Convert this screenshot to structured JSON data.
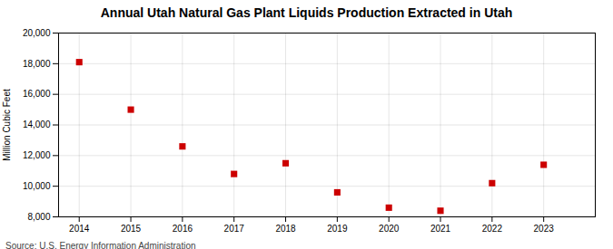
{
  "chart_data": {
    "type": "scatter",
    "title": "Annual Utah Natural Gas Plant Liquids Production Extracted in Utah",
    "ylabel": "Million Cubic Feet",
    "source": "Source: U.S. Energy Information Administration",
    "x": [
      2014,
      2015,
      2016,
      2017,
      2018,
      2019,
      2020,
      2021,
      2022,
      2023
    ],
    "values": [
      18100,
      15000,
      12600,
      10800,
      11500,
      9600,
      8600,
      8400,
      10200,
      11400
    ],
    "color": "#cc0000",
    "marker": "square",
    "xlim": [
      2013.6,
      2024.0
    ],
    "xticks": [
      2014,
      2015,
      2016,
      2017,
      2018,
      2019,
      2020,
      2021,
      2022,
      2023
    ],
    "ylim": [
      8000,
      20000
    ],
    "yticks": [
      {
        "value": 8000,
        "label": "8,000"
      },
      {
        "value": 10000,
        "label": "10,000"
      },
      {
        "value": 12000,
        "label": "12,000"
      },
      {
        "value": 14000,
        "label": "14,000"
      },
      {
        "value": 16000,
        "label": "16,000"
      },
      {
        "value": 18000,
        "label": "18,000"
      },
      {
        "value": 20000,
        "label": "20,000"
      }
    ],
    "grid": true
  }
}
